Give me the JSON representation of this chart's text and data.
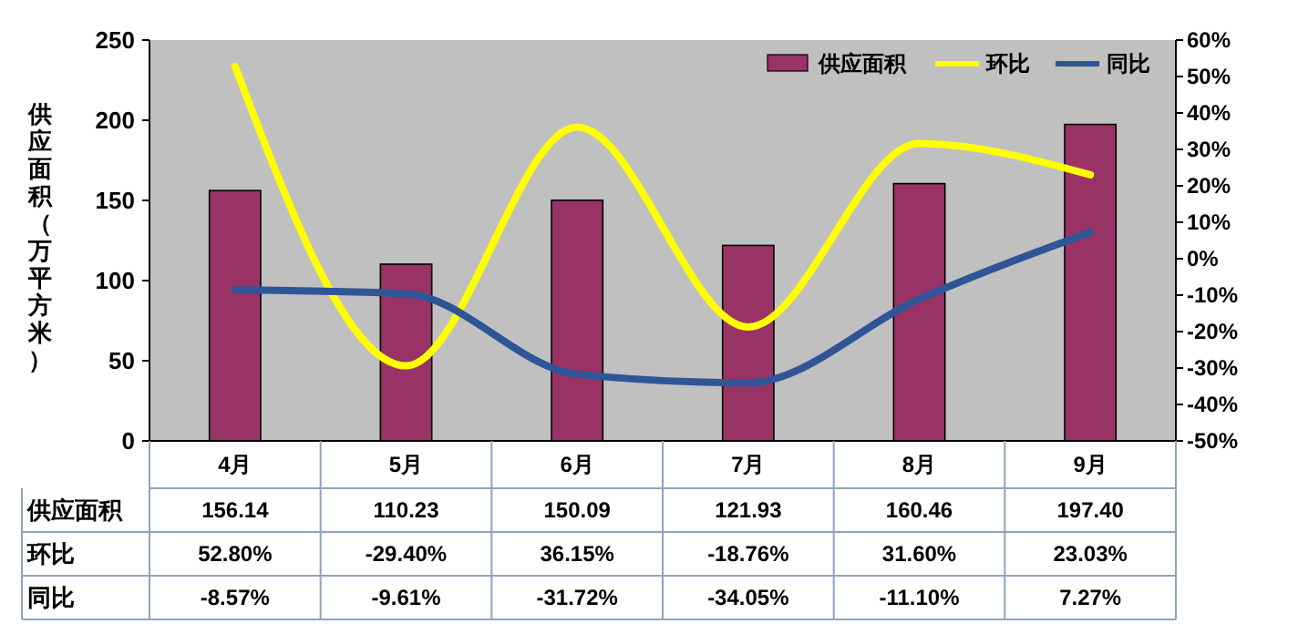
{
  "chart_data": {
    "type": "bar",
    "ylabel": "供应面积（万平方米）",
    "categories": [
      "4月",
      "5月",
      "6月",
      "7月",
      "8月",
      "9月"
    ],
    "series": [
      {
        "name": "供应面积",
        "color": "#993366",
        "values": [
          156.14,
          110.23,
          150.09,
          121.93,
          160.46,
          197.4
        ],
        "value_labels": [
          "156.14",
          "110.23",
          "150.09",
          "121.93",
          "160.46",
          "197.40"
        ]
      },
      {
        "name": "环比",
        "type": "line",
        "axis": "y2",
        "color": "#ffff00",
        "values": [
          52.8,
          -29.4,
          36.15,
          -18.76,
          31.6,
          23.03
        ],
        "value_labels": [
          "52.80%",
          "-29.40%",
          "36.15%",
          "-18.76%",
          "31.60%",
          "23.03%"
        ]
      },
      {
        "name": "同比",
        "type": "line",
        "axis": "y2",
        "color": "#2f5597",
        "values": [
          -8.57,
          -9.61,
          -31.72,
          -34.05,
          -11.1,
          7.27
        ],
        "value_labels": [
          "-8.57%",
          "-9.61%",
          "-31.72%",
          "-34.05%",
          "-11.10%",
          "7.27%"
        ]
      }
    ],
    "ylim": [
      0,
      250
    ],
    "yticks": [
      0,
      50,
      100,
      150,
      200,
      250
    ],
    "y2lim": [
      -50,
      60
    ],
    "y2ticks": [
      {
        "value": -50,
        "label": "-50%"
      },
      {
        "value": -40,
        "label": "-40%"
      },
      {
        "value": -30,
        "label": "-30%"
      },
      {
        "value": -20,
        "label": "-20%"
      },
      {
        "value": -10,
        "label": "-10%"
      },
      {
        "value": 0,
        "label": "0%"
      },
      {
        "value": 10,
        "label": "10%"
      },
      {
        "value": 20,
        "label": "20%"
      },
      {
        "value": 30,
        "label": "30%"
      },
      {
        "value": 40,
        "label": "40%"
      },
      {
        "value": 50,
        "label": "50%"
      },
      {
        "value": 60,
        "label": "60%"
      }
    ],
    "legend": "top right",
    "grid": false
  }
}
